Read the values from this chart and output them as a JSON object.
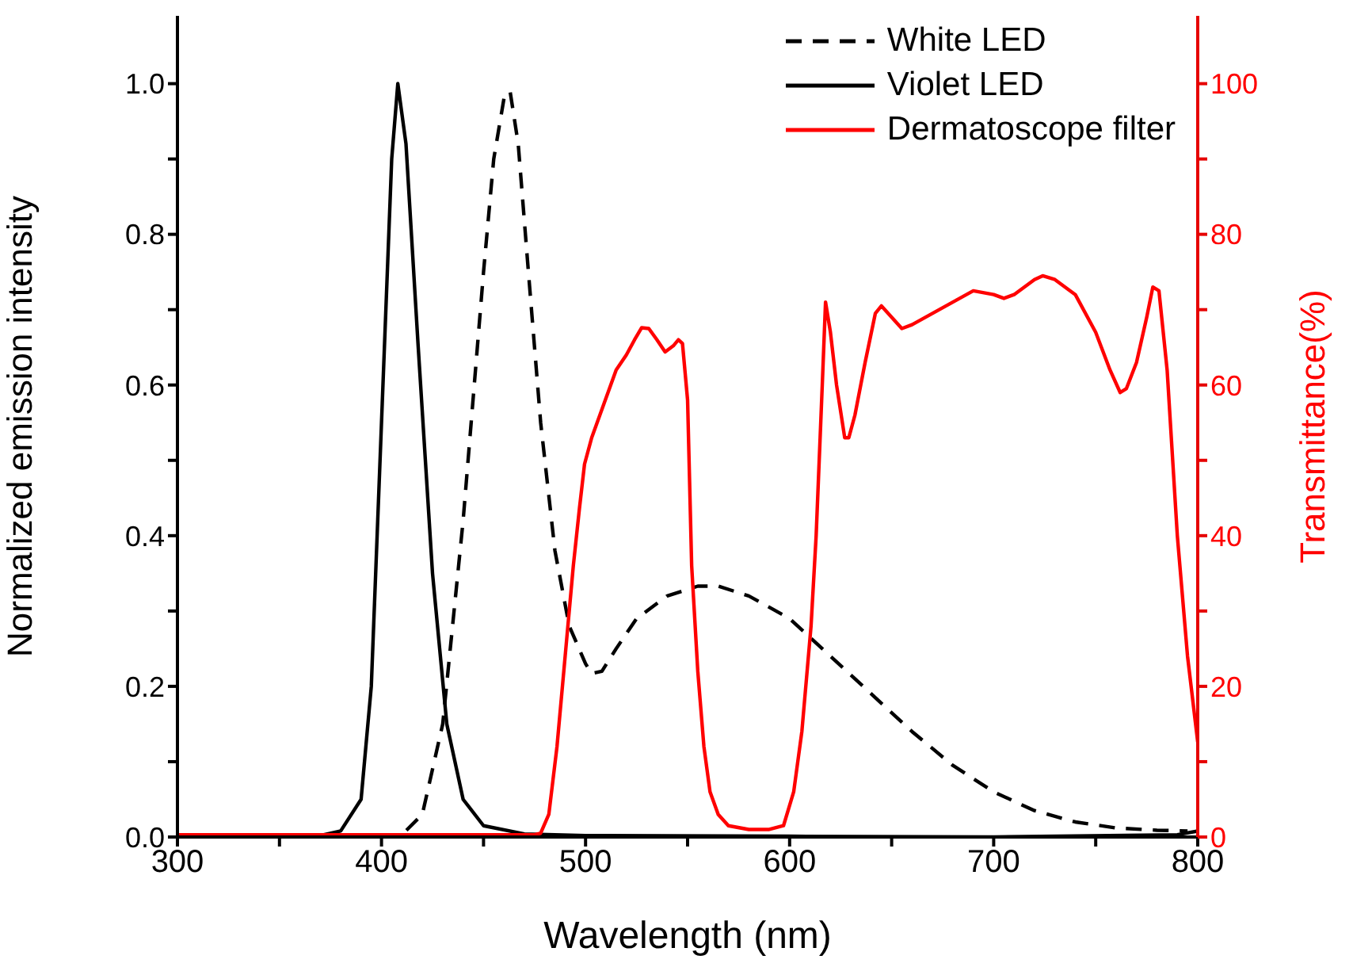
{
  "chart_data": {
    "type": "line",
    "xlabel": "Wavelength (nm)",
    "ylabel": "Normalized emission intensity",
    "y2label": "Transmittance(%)",
    "xlim": [
      300,
      800
    ],
    "xticks": [
      300,
      {
        "value": 350,
        "label": null
      },
      400,
      {
        "value": 450,
        "label": null
      },
      500,
      {
        "value": 550,
        "label": null
      },
      600,
      {
        "value": 650,
        "label": null
      },
      700,
      {
        "value": 750,
        "label": null
      },
      800
    ],
    "ylim": [
      0,
      1.09
    ],
    "yticks": [
      {
        "value": 0,
        "label": "0.0"
      },
      {
        "value": 0.1,
        "label": null
      },
      {
        "value": 0.2,
        "label": "0.2"
      },
      {
        "value": 0.3,
        "label": null
      },
      {
        "value": 0.4,
        "label": "0.4"
      },
      {
        "value": 0.5,
        "label": null
      },
      {
        "value": 0.6,
        "label": "0.6"
      },
      {
        "value": 0.7,
        "label": null
      },
      {
        "value": 0.8,
        "label": "0.8"
      },
      {
        "value": 0.9,
        "label": null
      },
      {
        "value": 1,
        "label": "1.0"
      }
    ],
    "y2lim": [
      0,
      109
    ],
    "y2ticks": [
      0,
      {
        "value": 10,
        "label": null
      },
      20,
      {
        "value": 30,
        "label": null
      },
      40,
      {
        "value": 50,
        "label": null
      },
      60,
      {
        "value": 70,
        "label": null
      },
      80,
      {
        "value": 90,
        "label": null
      },
      100
    ],
    "legend": "top right",
    "marker": "none",
    "series": [
      {
        "name": "White LED",
        "color": "#000000",
        "line_style": "dashed",
        "x": [
          400,
          410,
          420,
          430,
          440,
          450,
          455,
          460,
          463,
          467,
          472,
          478,
          485,
          492,
          500,
          503,
          508,
          515,
          525,
          540,
          555,
          565,
          580,
          600,
          620,
          640,
          660,
          680,
          700,
          720,
          740,
          760,
          780,
          795
        ],
        "values": [
          0,
          0.003,
          0.03,
          0.15,
          0.42,
          0.75,
          0.9,
          0.98,
          0.99,
          0.92,
          0.75,
          0.55,
          0.38,
          0.28,
          0.23,
          0.217,
          0.22,
          0.25,
          0.29,
          0.32,
          0.333,
          0.333,
          0.32,
          0.29,
          0.24,
          0.19,
          0.14,
          0.095,
          0.06,
          0.035,
          0.02,
          0.012,
          0.009,
          0.008
        ]
      },
      {
        "name": "Violet LED",
        "color": "#000000",
        "line_style": "solid",
        "x": [
          300,
          350,
          370,
          380,
          390,
          395,
          400,
          405,
          408,
          412,
          418,
          425,
          432,
          440,
          450,
          470,
          500,
          600,
          700,
          790,
          800
        ],
        "values": [
          0,
          0,
          0.002,
          0.008,
          0.05,
          0.2,
          0.55,
          0.9,
          1,
          0.92,
          0.65,
          0.35,
          0.15,
          0.05,
          0.015,
          0.004,
          0.002,
          0.001,
          0,
          0.003,
          0.008
        ]
      },
      {
        "name": "Dermatoscope filter",
        "color": "#ff0000",
        "line_style": "solid",
        "axis": "y2",
        "x": [
          300,
          400,
          475,
          478,
          482,
          486,
          490,
          494,
          497,
          499.5,
          503,
          507,
          511,
          515,
          520,
          524,
          527.5,
          531,
          535,
          539,
          543,
          545.5,
          547.5,
          550,
          552,
          555,
          558,
          561,
          565,
          570,
          580,
          590,
          597,
          602,
          606,
          610.5,
          613,
          616,
          617.6,
          620,
          623,
          627,
          629,
          632,
          637,
          642,
          645,
          650,
          655,
          660,
          670,
          680,
          690,
          700,
          705,
          710,
          720,
          724,
          730,
          740,
          750,
          757,
          762,
          765,
          770,
          775,
          778,
          781,
          785,
          790,
          795,
          800
        ],
        "values": [
          0.3,
          0.3,
          0.3,
          0.5,
          3,
          12,
          24,
          36,
          43.6,
          49.5,
          53,
          56,
          59,
          62,
          64,
          66,
          67.6,
          67.5,
          66,
          64.4,
          65.2,
          66,
          65.5,
          58,
          36,
          22,
          12,
          6,
          3,
          1.5,
          1,
          1,
          1.5,
          6,
          14,
          28,
          40,
          60,
          71,
          67,
          60,
          53,
          53,
          56,
          63,
          69.5,
          70.5,
          69,
          67.5,
          68,
          69.5,
          71,
          72.5,
          72,
          71.5,
          72,
          74,
          74.5,
          74,
          72,
          67,
          62,
          59,
          59.5,
          63,
          69,
          73,
          72.5,
          62,
          40,
          24,
          12.6
        ]
      }
    ]
  }
}
